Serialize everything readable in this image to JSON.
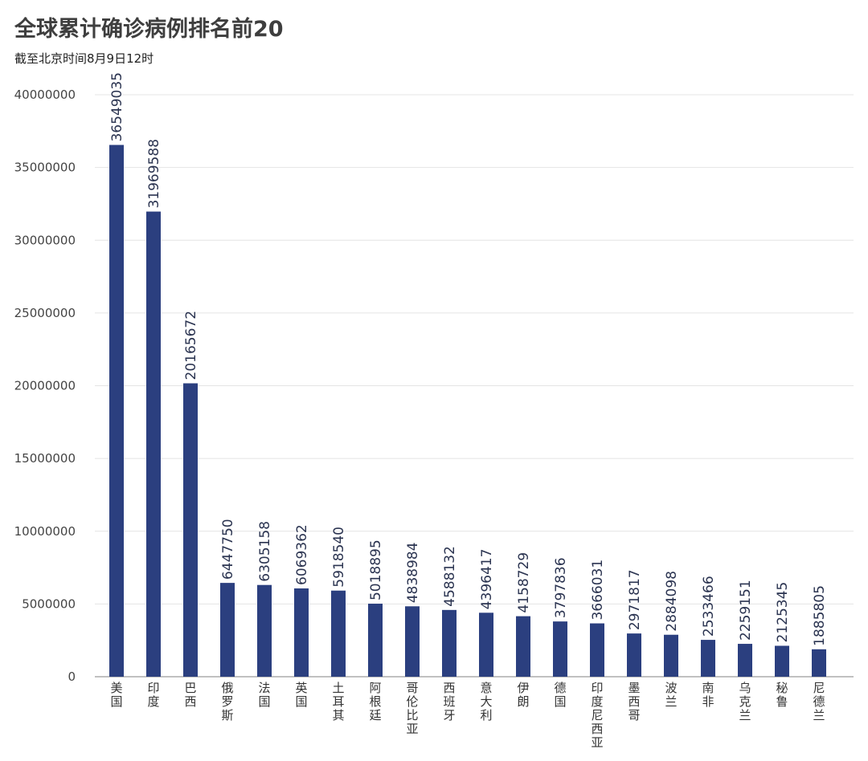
{
  "chart_data": {
    "type": "bar",
    "title": "全球累计确诊病例排名前20",
    "subtitle": "截至北京时间8月9日12时",
    "xlabel": "",
    "ylabel": "",
    "ylim": [
      0,
      40000000
    ],
    "yticks": [
      "0",
      "5000000",
      "10000000",
      "15000000",
      "20000000",
      "25000000",
      "30000000",
      "35000000",
      "40000000"
    ],
    "grid": true,
    "bar_color": "#2b3f7f",
    "categories": [
      "美国",
      "印度",
      "巴西",
      "俄罗斯",
      "法国",
      "英国",
      "土耳其",
      "阿根廷",
      "哥伦比亚",
      "西班牙",
      "意大利",
      "伊朗",
      "德国",
      "印度尼西亚",
      "墨西哥",
      "波兰",
      "南非",
      "乌克兰",
      "秘鲁",
      "尼德兰"
    ],
    "values": [
      36549035,
      31969588,
      20165672,
      6447750,
      6305158,
      6069362,
      5918540,
      5018895,
      4838984,
      4588132,
      4396417,
      4158729,
      3797836,
      3666031,
      2971817,
      2884098,
      2533466,
      2259151,
      2125345,
      1885805
    ]
  }
}
